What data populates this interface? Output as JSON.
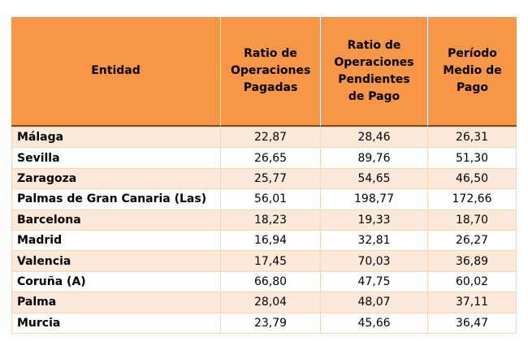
{
  "table": {
    "headers": [
      "Entidad",
      "Ratio de Operaciones Pagadas",
      "Ratio de Operaciones Pendientes de Pago",
      "Período Medio de Pago"
    ],
    "rows": [
      [
        "Málaga",
        "22,87",
        "28,46",
        "26,31"
      ],
      [
        "Sevilla",
        "26,65",
        "89,76",
        "51,30"
      ],
      [
        "Zaragoza",
        "25,77",
        "54,65",
        "46,50"
      ],
      [
        "Palmas de Gran Canaria (Las)",
        "56,01",
        "198,77",
        "172,66"
      ],
      [
        "Barcelona",
        "18,23",
        "19,33",
        "18,70"
      ],
      [
        "Madrid",
        "16,94",
        "32,81",
        "26,27"
      ],
      [
        "Valencia",
        "17,45",
        "70,03",
        "36,89"
      ],
      [
        "Coruña (A)",
        "66,80",
        "47,75",
        "60,02"
      ],
      [
        "Palma",
        "28,04",
        "48,07",
        "37,11"
      ],
      [
        "Murcia",
        "23,79",
        "45,66",
        "36,47"
      ]
    ]
  },
  "colors": {
    "header_fill": "#f79646",
    "band_fill": "#fde9d9",
    "grid_line": "#fbd4b4"
  }
}
